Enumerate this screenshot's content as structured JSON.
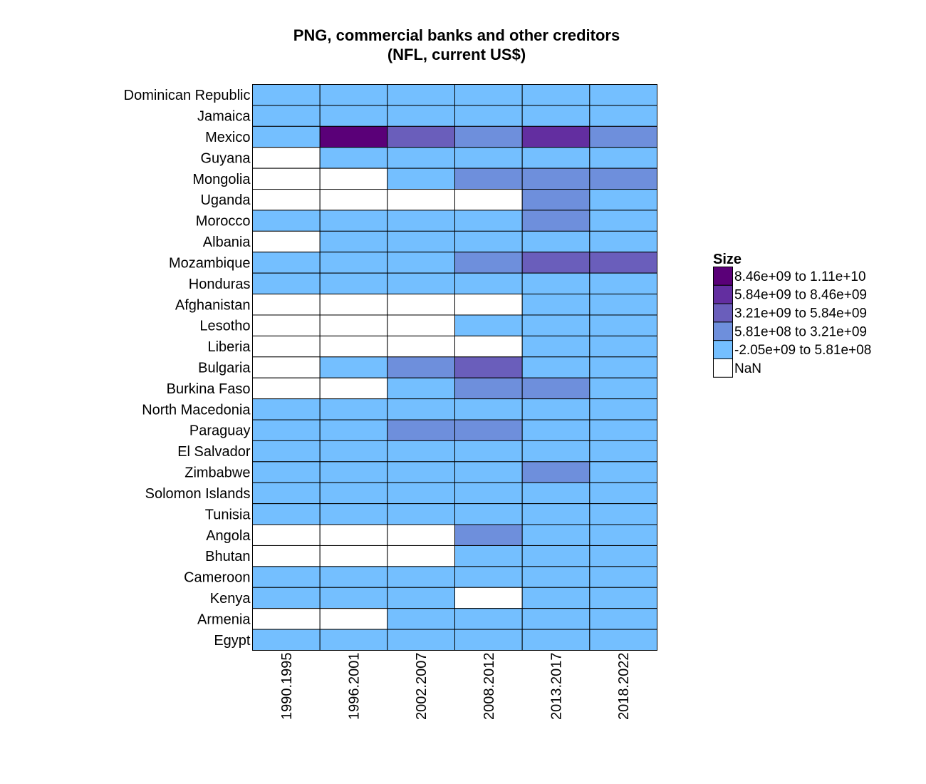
{
  "chart_data": {
    "type": "heatmap",
    "title_line1": "PNG, commercial banks and other creditors",
    "title_line2": "(NFL, current US$)",
    "columns": [
      "1990.1995",
      "1996.2001",
      "2002.2007",
      "2008.2012",
      "2013.2017",
      "2018.2022"
    ],
    "rows": [
      "Dominican Republic",
      "Jamaica",
      "Mexico",
      "Guyana",
      "Mongolia",
      "Uganda",
      "Morocco",
      "Albania",
      "Mozambique",
      "Honduras",
      "Afghanistan",
      "Lesotho",
      "Liberia",
      "Bulgaria",
      "Burkina Faso",
      "North Macedonia",
      "Paraguay",
      "El Salvador",
      "Zimbabwe",
      "Solomon Islands",
      "Tunisia",
      "Angola",
      "Bhutan",
      "Cameroon",
      "Kenya",
      "Armenia",
      "Egypt"
    ],
    "legend": {
      "title": "Size",
      "position": "right",
      "bins": [
        {
          "label": "8.46e+09 to 1.11e+10",
          "color": "#5a0078"
        },
        {
          "label": "5.84e+09 to 8.46e+09",
          "color": "#632ea0"
        },
        {
          "label": "3.21e+09 to 5.84e+09",
          "color": "#6a5ebb"
        },
        {
          "label": "5.81e+08 to 3.21e+09",
          "color": "#6e8fdc"
        },
        {
          "label": "-2.05e+09 to 5.81e+08",
          "color": "#74bfff"
        },
        {
          "label": "NaN",
          "color": "#ffffff"
        }
      ]
    },
    "cells": [
      [
        4,
        4,
        4,
        4,
        4,
        4
      ],
      [
        4,
        4,
        4,
        4,
        4,
        4
      ],
      [
        4,
        0,
        2,
        3,
        1,
        3
      ],
      [
        5,
        4,
        4,
        4,
        4,
        4
      ],
      [
        5,
        5,
        4,
        3,
        3,
        3
      ],
      [
        5,
        5,
        5,
        5,
        3,
        4
      ],
      [
        4,
        4,
        4,
        4,
        3,
        4
      ],
      [
        5,
        4,
        4,
        4,
        4,
        4
      ],
      [
        4,
        4,
        4,
        3,
        2,
        2
      ],
      [
        4,
        4,
        4,
        4,
        4,
        4
      ],
      [
        5,
        5,
        5,
        5,
        4,
        4
      ],
      [
        5,
        5,
        5,
        4,
        4,
        4
      ],
      [
        5,
        5,
        5,
        5,
        4,
        4
      ],
      [
        5,
        4,
        3,
        2,
        4,
        4
      ],
      [
        5,
        5,
        4,
        3,
        3,
        4
      ],
      [
        4,
        4,
        4,
        4,
        4,
        4
      ],
      [
        4,
        4,
        3,
        3,
        4,
        4
      ],
      [
        4,
        4,
        4,
        4,
        4,
        4
      ],
      [
        4,
        4,
        4,
        4,
        3,
        4
      ],
      [
        4,
        4,
        4,
        4,
        4,
        4
      ],
      [
        4,
        4,
        4,
        4,
        4,
        4
      ],
      [
        5,
        5,
        5,
        3,
        4,
        4
      ],
      [
        5,
        5,
        5,
        4,
        4,
        4
      ],
      [
        4,
        4,
        4,
        4,
        4,
        4
      ],
      [
        4,
        4,
        4,
        5,
        4,
        4
      ],
      [
        5,
        5,
        4,
        4,
        4,
        4
      ],
      [
        4,
        4,
        4,
        4,
        4,
        4
      ]
    ]
  }
}
